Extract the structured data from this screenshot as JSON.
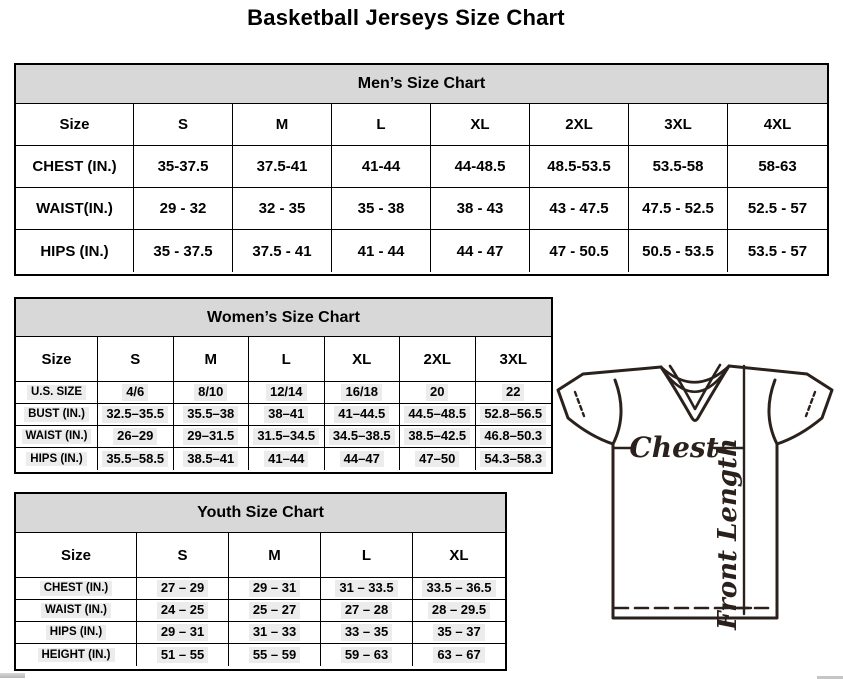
{
  "page_title": "Basketball Jerseys Size Chart",
  "mens": {
    "title": "Men’s Size Chart",
    "columns": [
      "Size",
      "S",
      "M",
      "L",
      "XL",
      "2XL",
      "3XL",
      "4XL"
    ],
    "rows": [
      {
        "label": "CHEST (IN.)",
        "values": [
          "35-37.5",
          "37.5-41",
          "41-44",
          "44-48.5",
          "48.5-53.5",
          "53.5-58",
          "58-63"
        ]
      },
      {
        "label": "WAIST(IN.)",
        "values": [
          "29 - 32",
          "32 - 35",
          "35 - 38",
          "38 - 43",
          "43 - 47.5",
          "47.5 - 52.5",
          "52.5 - 57"
        ]
      },
      {
        "label": "HIPS (IN.)",
        "values": [
          "35 - 37.5",
          "37.5 - 41",
          "41 - 44",
          "44 - 47",
          "47 - 50.5",
          "50.5 - 53.5",
          "53.5 - 57"
        ]
      }
    ]
  },
  "womens": {
    "title": "Women’s Size Chart",
    "columns": [
      "Size",
      "S",
      "M",
      "L",
      "XL",
      "2XL",
      "3XL"
    ],
    "rows": [
      {
        "label": "U.S. SIZE",
        "values": [
          "4/6",
          "8/10",
          "12/14",
          "16/18",
          "20",
          "22"
        ]
      },
      {
        "label": "BUST (IN.)",
        "values": [
          "32.5–35.5",
          "35.5–38",
          "38–41",
          "41–44.5",
          "44.5–48.5",
          "52.8–56.5"
        ]
      },
      {
        "label": "WAIST (IN.)",
        "values": [
          "26–29",
          "29–31.5",
          "31.5–34.5",
          "34.5–38.5",
          "38.5–42.5",
          "46.8–50.3"
        ]
      },
      {
        "label": "HIPS (IN.)",
        "values": [
          "35.5–58.5",
          "38.5–41",
          "41–44",
          "44–47",
          "47–50",
          "54.3–58.3"
        ]
      }
    ]
  },
  "youth": {
    "title": "Youth Size Chart",
    "columns": [
      "Size",
      "S",
      "M",
      "L",
      "XL"
    ],
    "rows": [
      {
        "label": "CHEST (IN.)",
        "values": [
          "27 – 29",
          "29 – 31",
          "31 – 33.5",
          "33.5 – 36.5"
        ]
      },
      {
        "label": "WAIST (IN.)",
        "values": [
          "24 – 25",
          "25 – 27",
          "27 – 28",
          "28 – 29.5"
        ]
      },
      {
        "label": "HIPS (IN.)",
        "values": [
          "29 – 31",
          "31 – 33",
          "33 – 35",
          "35 – 37"
        ]
      },
      {
        "label": "HEIGHT (IN.)",
        "values": [
          "51 – 55",
          "55 – 59",
          "59 – 63",
          "63 – 67"
        ]
      }
    ]
  },
  "diagram": {
    "chest_label": "Chest",
    "front_length_label": "Front Length"
  },
  "colors": {
    "header_band": "#d8d8d8",
    "value_highlight": "#ececec",
    "line": "#2b211c",
    "border": "#000000"
  }
}
